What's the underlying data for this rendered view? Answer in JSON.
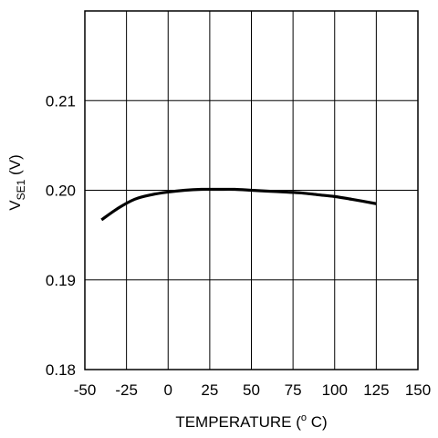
{
  "chart_data": {
    "type": "line",
    "title": "",
    "xlabel": "TEMPERATURE ( ° C)",
    "xlabel_main": "TEMPERATURE (",
    "xlabel_degree": "o",
    "xlabel_unit": " C)",
    "ylabel": "VSE1 (V)",
    "ylabel_main": "V",
    "ylabel_sub": "SE1",
    "ylabel_unit": " (V)",
    "xlim": [
      -50,
      150
    ],
    "ylim": [
      0.18,
      0.22
    ],
    "xticks": [
      -50,
      -25,
      0,
      25,
      50,
      75,
      100,
      125,
      150
    ],
    "xtick_labels": [
      "-50",
      "-25",
      "0",
      "25",
      "50",
      "75",
      "100",
      "125",
      "150"
    ],
    "yticks": [
      0.18,
      0.19,
      0.2,
      0.21
    ],
    "ytick_labels": [
      "0.18",
      "0.19",
      "0.20",
      "0.21"
    ],
    "grid": true,
    "series": [
      {
        "color": "#000000",
        "x": [
          -40,
          -30,
          -20,
          -10,
          0,
          10,
          20,
          30,
          40,
          50,
          60,
          70,
          80,
          90,
          100,
          110,
          125
        ],
        "y": [
          0.1967,
          0.198,
          0.199,
          0.1995,
          0.1998,
          0.2,
          0.2001,
          0.2001,
          0.2001,
          0.2,
          0.1999,
          0.1998,
          0.1997,
          0.1995,
          0.1993,
          0.199,
          0.1985
        ]
      }
    ]
  }
}
